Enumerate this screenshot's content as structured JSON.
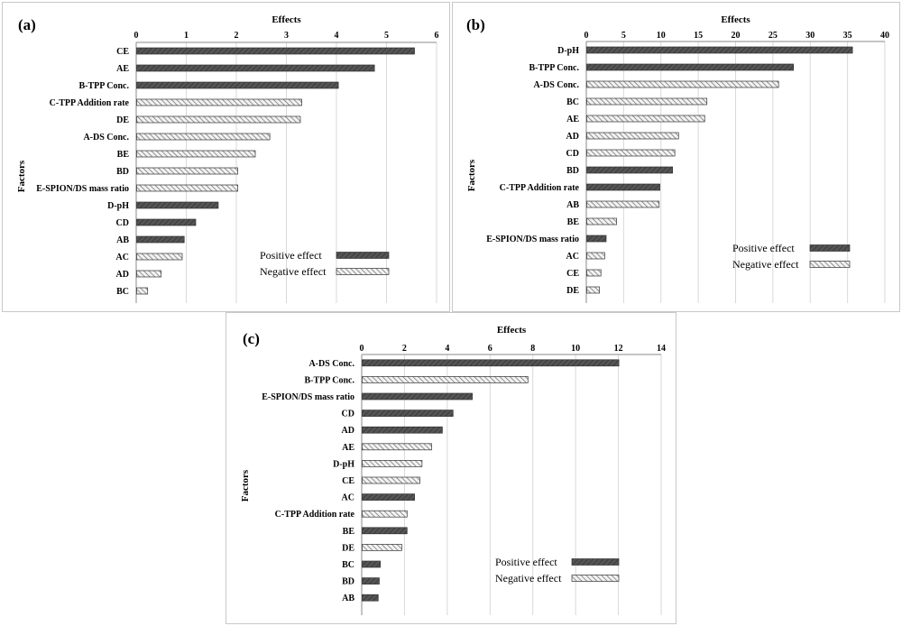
{
  "colors": {
    "positive_fill": "#555555",
    "negative_fill": "#f2f2f2",
    "hatch_positive": "#3a3a3a",
    "hatch_negative": "#6a6a6a",
    "border": "#c8c8c8"
  },
  "chart_data": [
    {
      "type": "bar",
      "orientation": "horizontal",
      "panel_label": "(a)",
      "xlabel": "Effects",
      "ylabel": "Factors",
      "xlim": [
        0,
        6
      ],
      "xticks": [
        0,
        1,
        2,
        3,
        4,
        5,
        6
      ],
      "grid": true,
      "legend": {
        "position": "bottom-right",
        "entries": [
          "Positive effect",
          "Negative effect"
        ]
      },
      "categories": [
        "CE",
        "AE",
        "B-TPP Conc.",
        "C-TPP Addition rate",
        "DE",
        "A-DS Conc.",
        "BE",
        "BD",
        "E-SPION/DS mass ratio",
        "D-pH",
        "CD",
        "AB",
        "AC",
        "AD",
        "BC"
      ],
      "values": [
        5.55,
        4.75,
        4.03,
        3.3,
        3.27,
        2.66,
        2.37,
        2.02,
        2.02,
        1.63,
        1.18,
        0.95,
        0.91,
        0.49,
        0.22
      ],
      "sign": [
        "positive",
        "positive",
        "positive",
        "negative",
        "negative",
        "negative",
        "negative",
        "negative",
        "negative",
        "positive",
        "positive",
        "positive",
        "negative",
        "negative",
        "negative"
      ]
    },
    {
      "type": "bar",
      "orientation": "horizontal",
      "panel_label": "(b)",
      "xlabel": "Effects",
      "ylabel": "Factors",
      "xlim": [
        0,
        40
      ],
      "xticks": [
        0,
        5,
        10,
        15,
        20,
        25,
        30,
        35,
        40
      ],
      "grid": true,
      "legend": {
        "position": "bottom-right",
        "entries": [
          "Positive effect",
          "Negative effect"
        ]
      },
      "categories": [
        "D-pH",
        "B-TPP Conc.",
        "A-DS Conc.",
        "BC",
        "AE",
        "AD",
        "CD",
        "BD",
        "C-TPP Addition rate",
        "AB",
        "BE",
        "E-SPION/DS mass ratio",
        "AC",
        "CE",
        "DE"
      ],
      "values": [
        35.6,
        27.7,
        25.7,
        16.1,
        15.8,
        12.3,
        11.8,
        11.5,
        9.8,
        9.7,
        4.0,
        2.6,
        2.4,
        1.9,
        1.7
      ],
      "sign": [
        "positive",
        "positive",
        "negative",
        "negative",
        "negative",
        "negative",
        "negative",
        "positive",
        "positive",
        "negative",
        "negative",
        "positive",
        "negative",
        "negative",
        "negative"
      ]
    },
    {
      "type": "bar",
      "orientation": "horizontal",
      "panel_label": "(c)",
      "xlabel": "Effects",
      "ylabel": "Factors",
      "xlim": [
        0,
        14
      ],
      "xticks": [
        0,
        2,
        4,
        6,
        8,
        10,
        12,
        14
      ],
      "grid": true,
      "legend": {
        "position": "bottom-right",
        "entries": [
          "Positive effect",
          "Negative effect"
        ]
      },
      "categories": [
        "A-DS Conc.",
        "B-TPP Conc.",
        "E-SPION/DS mass ratio",
        "CD",
        "AD",
        "AE",
        "D-pH",
        "CE",
        "AC",
        "C-TPP Addition rate",
        "BE",
        "DE",
        "BC",
        "BD",
        "AB"
      ],
      "values": [
        12.0,
        7.75,
        5.15,
        4.25,
        3.75,
        3.25,
        2.8,
        2.7,
        2.45,
        2.1,
        2.1,
        1.85,
        0.85,
        0.8,
        0.75
      ],
      "sign": [
        "positive",
        "negative",
        "positive",
        "positive",
        "positive",
        "negative",
        "negative",
        "negative",
        "positive",
        "negative",
        "positive",
        "negative",
        "positive",
        "positive",
        "positive"
      ]
    }
  ]
}
